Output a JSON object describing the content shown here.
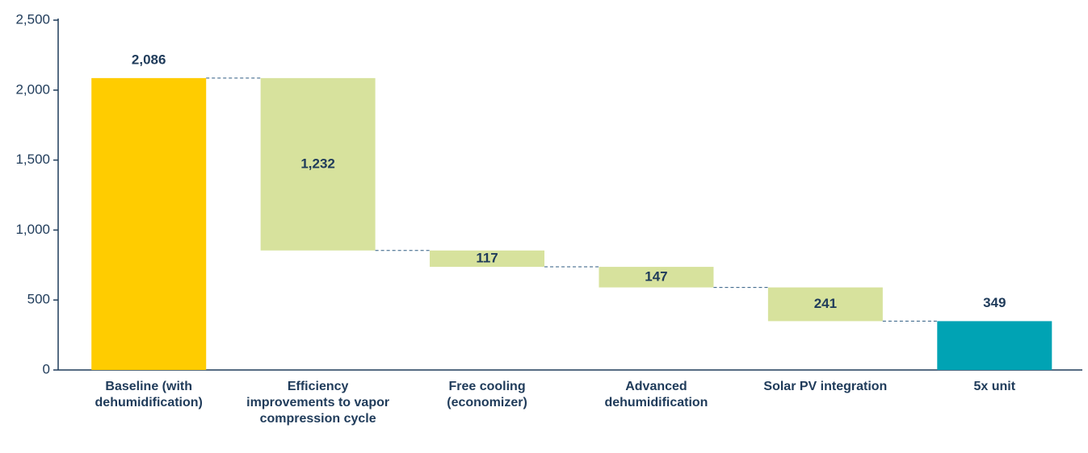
{
  "chart_data": {
    "type": "waterfall",
    "categories": [
      "Baseline (with dehumidification)",
      "Efficiency improvements to vapor compression cycle",
      "Free cooling (economizer)",
      "Advanced dehumidification",
      "Solar PV integration",
      "5x unit"
    ],
    "values": [
      2086,
      1232,
      117,
      147,
      241,
      349
    ],
    "value_labels": [
      "2,086",
      "1,232",
      "117",
      "147",
      "241",
      "349"
    ],
    "measures": [
      "total",
      "decrease",
      "decrease",
      "decrease",
      "decrease",
      "total"
    ],
    "colors": [
      "#ffcc00",
      "#d7e29d",
      "#d7e29d",
      "#d7e29d",
      "#d7e29d",
      "#00a3b4"
    ],
    "ylim": [
      0,
      2500
    ],
    "yticks": [
      0,
      500,
      {
        "value": 1000,
        "label": "1,000"
      },
      {
        "value": 1500,
        "label": "1,500"
      },
      {
        "value": 2000,
        "label": "2,000"
      },
      {
        "value": 2500,
        "label": "2,500"
      }
    ],
    "grid": false
  }
}
